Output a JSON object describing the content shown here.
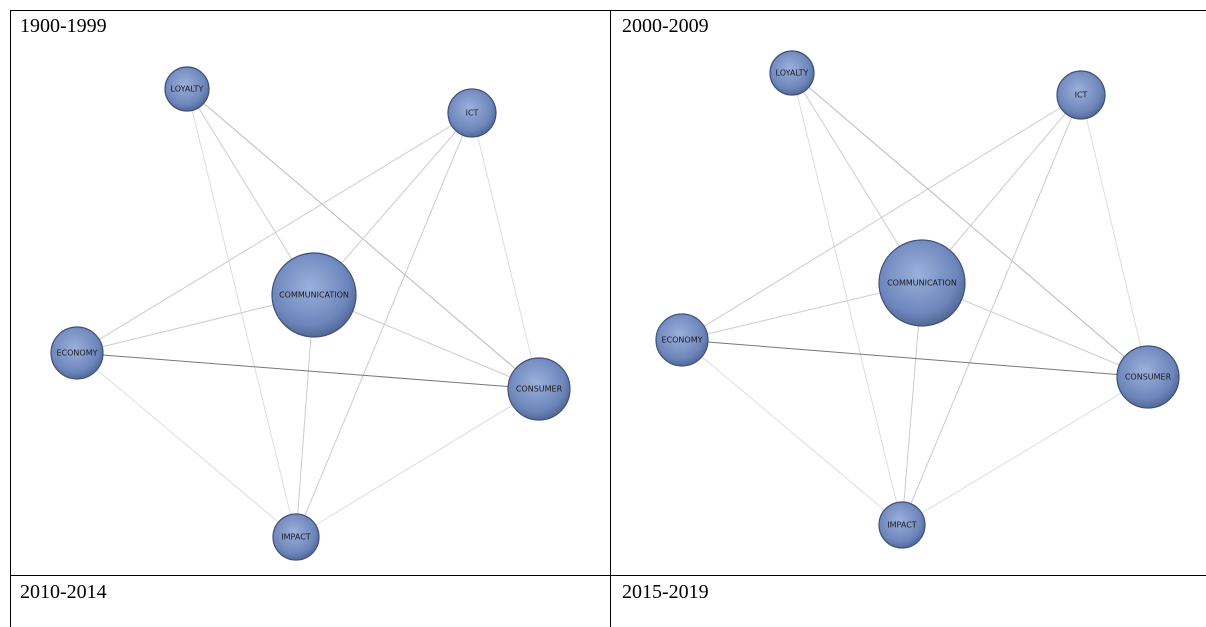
{
  "panels": [
    {
      "title": "1900-1999",
      "nodes": [
        {
          "label": "LOYALTY"
        },
        {
          "label": "ICT"
        },
        {
          "label": "COMMUNICATION"
        },
        {
          "label": "ECONOMY"
        },
        {
          "label": "CONSUMER"
        },
        {
          "label": "IMPACT"
        }
      ]
    },
    {
      "title": "2000-2009",
      "nodes": [
        {
          "label": "LOYALTY"
        },
        {
          "label": "ICT"
        },
        {
          "label": "COMMUNICATION"
        },
        {
          "label": "ECONOMY"
        },
        {
          "label": "CONSUMER"
        },
        {
          "label": "IMPACT"
        }
      ]
    },
    {
      "title": "2010-2014"
    },
    {
      "title": "2015-2019"
    }
  ]
}
